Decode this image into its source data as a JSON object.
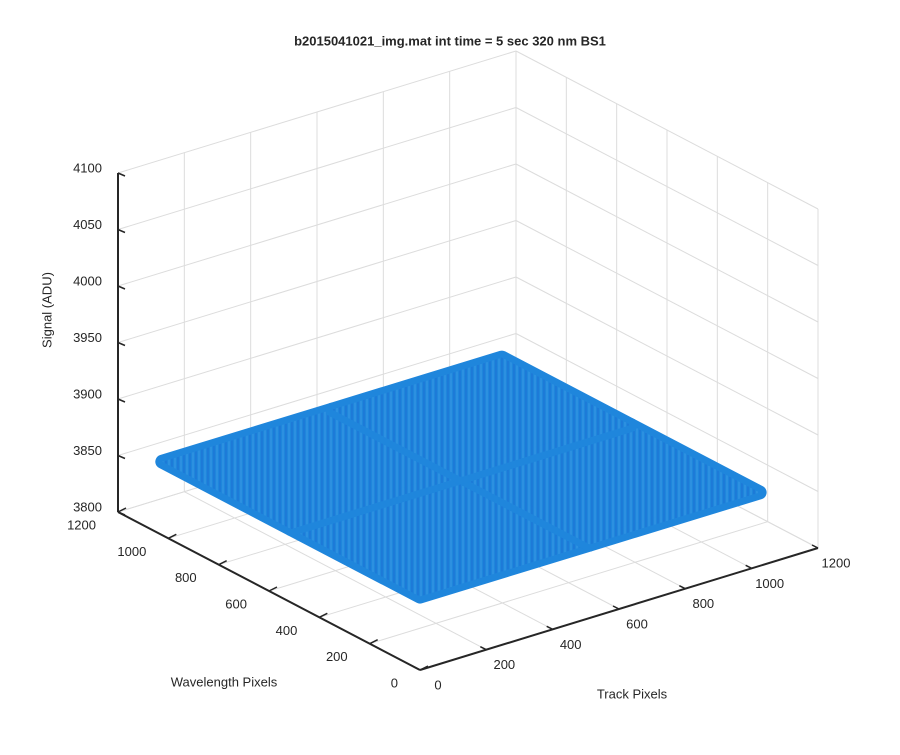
{
  "chart_data": {
    "type": "surface3d",
    "title": "b2015041021_img.mat int time = 5 sec  320 nm BS1",
    "xlabel": "Track Pixels",
    "ylabel": "Wavelength Pixels",
    "zlabel": "Signal (ADU)",
    "x": [
      0,
      512,
      1024
    ],
    "y": [
      0,
      512,
      1024
    ],
    "z": [
      [
        3865,
        3865,
        3865
      ],
      [
        3865,
        3865,
        3865
      ],
      [
        3865,
        3865,
        3865
      ]
    ],
    "color": "#1f86dc",
    "xlim": [
      0,
      1200
    ],
    "ylim": [
      0,
      1200
    ],
    "zlim": [
      3800,
      4100
    ],
    "xticks": [
      0,
      200,
      400,
      600,
      800,
      1000,
      1200
    ],
    "yticks": [
      0,
      200,
      400,
      600,
      800,
      1000,
      1200
    ],
    "zticks": [
      3800,
      3850,
      3900,
      3950,
      4000,
      4050,
      4100
    ],
    "grid": true
  }
}
